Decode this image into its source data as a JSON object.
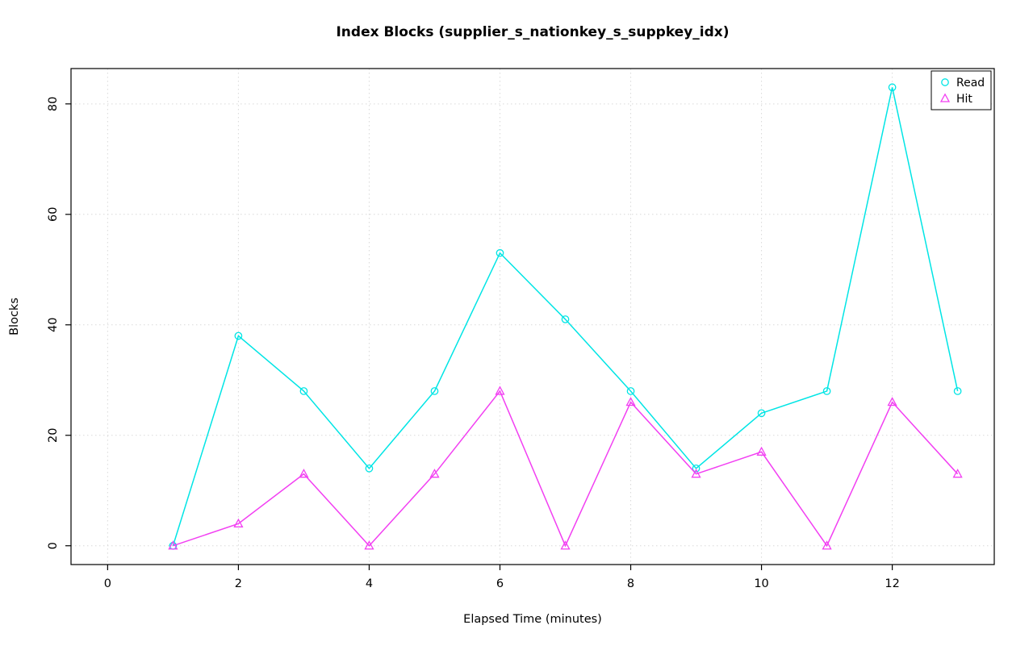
{
  "chart_data": {
    "type": "line",
    "title": "Index Blocks (supplier_s_nationkey_s_suppkey_idx)",
    "xlabel": "Elapsed Time (minutes)",
    "ylabel": "Blocks",
    "x": [
      1,
      2,
      3,
      4,
      5,
      6,
      7,
      8,
      9,
      10,
      11,
      12,
      13
    ],
    "series": [
      {
        "name": "Read",
        "marker": "circle",
        "color": "#00E5E5",
        "values": [
          0,
          38,
          28,
          14,
          28,
          53,
          41,
          28,
          14,
          24,
          28,
          83,
          28
        ]
      },
      {
        "name": "Hit",
        "marker": "triangle",
        "color": "#F23FF2",
        "values": [
          0,
          4,
          13,
          0,
          13,
          28,
          0,
          26,
          13,
          17,
          0,
          26,
          13
        ]
      }
    ],
    "xticks": [
      0,
      2,
      4,
      6,
      8,
      10,
      12
    ],
    "yticks": [
      0,
      20,
      40,
      60,
      80
    ],
    "xlim": [
      -0.56,
      13.56
    ],
    "ylim": [
      -3.4,
      86.4
    ],
    "grid": true,
    "grid_color": "#D9D9D9",
    "axis_color": "#000000",
    "background": "#FFFFFF",
    "legend": {
      "position": "top-right",
      "items": [
        {
          "label": "Read",
          "marker": "circle",
          "color": "#00E5E5"
        },
        {
          "label": "Hit",
          "marker": "triangle",
          "color": "#F23FF2"
        }
      ]
    }
  }
}
